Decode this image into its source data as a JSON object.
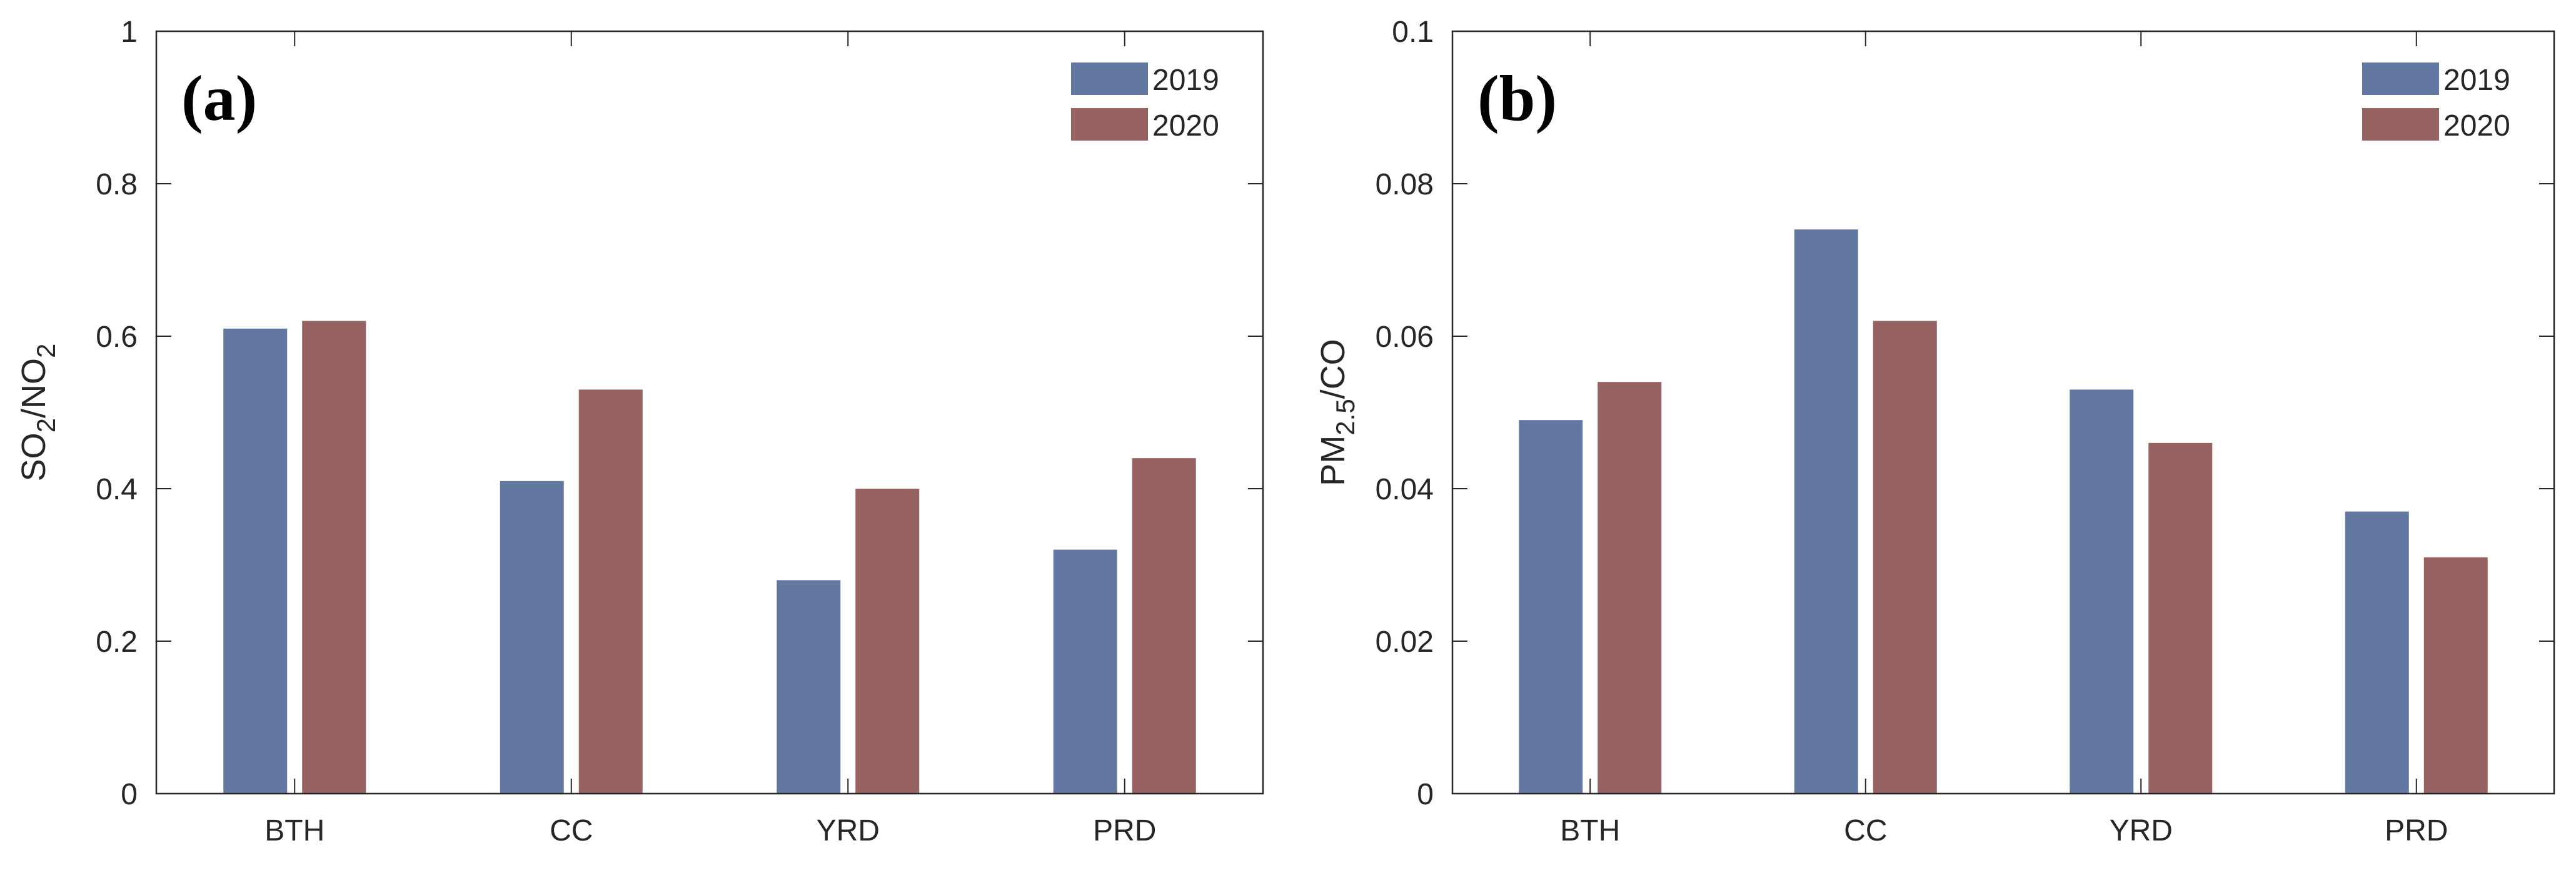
{
  "chart_data": [
    {
      "type": "bar",
      "panel_label": "(a)",
      "categories": [
        "BTH",
        "CC",
        "YRD",
        "PRD"
      ],
      "series": [
        {
          "name": "2019",
          "color": "#6378a0",
          "values": [
            0.61,
            0.41,
            0.28,
            0.32
          ]
        },
        {
          "name": "2020",
          "color": "#966262",
          "values": [
            0.62,
            0.53,
            0.4,
            0.44
          ]
        }
      ],
      "ylabel": {
        "main": "SO",
        "sub1": "2",
        "mid": "/NO",
        "sub2": "2"
      },
      "ylim": [
        0,
        1
      ],
      "yticks": [
        "0",
        "0.2",
        "0.4",
        "0.6",
        "0.8",
        "1"
      ],
      "grid": false,
      "legend_position": "top-right"
    },
    {
      "type": "bar",
      "panel_label": "(b)",
      "categories": [
        "BTH",
        "CC",
        "YRD",
        "PRD"
      ],
      "series": [
        {
          "name": "2019",
          "color": "#6378a0",
          "values": [
            0.049,
            0.074,
            0.053,
            0.037
          ]
        },
        {
          "name": "2020",
          "color": "#966262",
          "values": [
            0.054,
            0.062,
            0.046,
            0.031
          ]
        }
      ],
      "ylabel": {
        "main": "PM",
        "sub1": "2.5",
        "mid": "/CO",
        "sub2": ""
      },
      "ylim": [
        0,
        0.1
      ],
      "yticks": [
        "0",
        "0.02",
        "0.04",
        "0.06",
        "0.08",
        "0.1"
      ],
      "grid": false,
      "legend_position": "top-right"
    }
  ]
}
